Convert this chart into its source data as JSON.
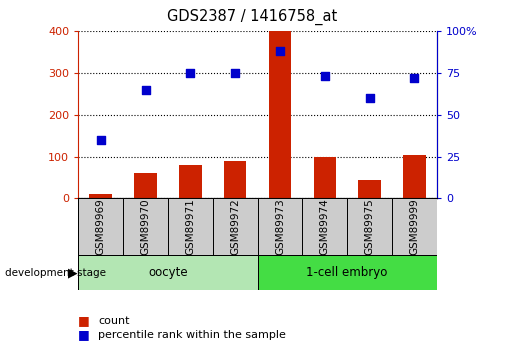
{
  "title": "GDS2387 / 1416758_at",
  "samples": [
    "GSM89969",
    "GSM89970",
    "GSM89971",
    "GSM89972",
    "GSM89973",
    "GSM89974",
    "GSM89975",
    "GSM89999"
  ],
  "counts": [
    10,
    60,
    80,
    90,
    400,
    100,
    45,
    103
  ],
  "percentiles": [
    35,
    65,
    75,
    75,
    88,
    73,
    60,
    72
  ],
  "groups": [
    {
      "label": "oocyte",
      "start": 0,
      "end": 4,
      "color": "#b3e6b3"
    },
    {
      "label": "1-cell embryo",
      "start": 4,
      "end": 8,
      "color": "#44dd44"
    }
  ],
  "bar_color": "#cc2200",
  "dot_color": "#0000cc",
  "left_ylim": [
    0,
    400
  ],
  "right_ylim": [
    0,
    100
  ],
  "left_yticks": [
    0,
    100,
    200,
    300,
    400
  ],
  "right_yticks": [
    0,
    25,
    50,
    75,
    100
  ],
  "right_yticklabels": [
    "0",
    "25",
    "50",
    "75",
    "100%"
  ],
  "grid_color": "#000000",
  "bar_width": 0.5,
  "legend_count_label": "count",
  "legend_pct_label": "percentile rank within the sample",
  "sample_box_color": "#cccccc",
  "left_tick_color": "#cc2200",
  "right_tick_color": "#0000cc"
}
